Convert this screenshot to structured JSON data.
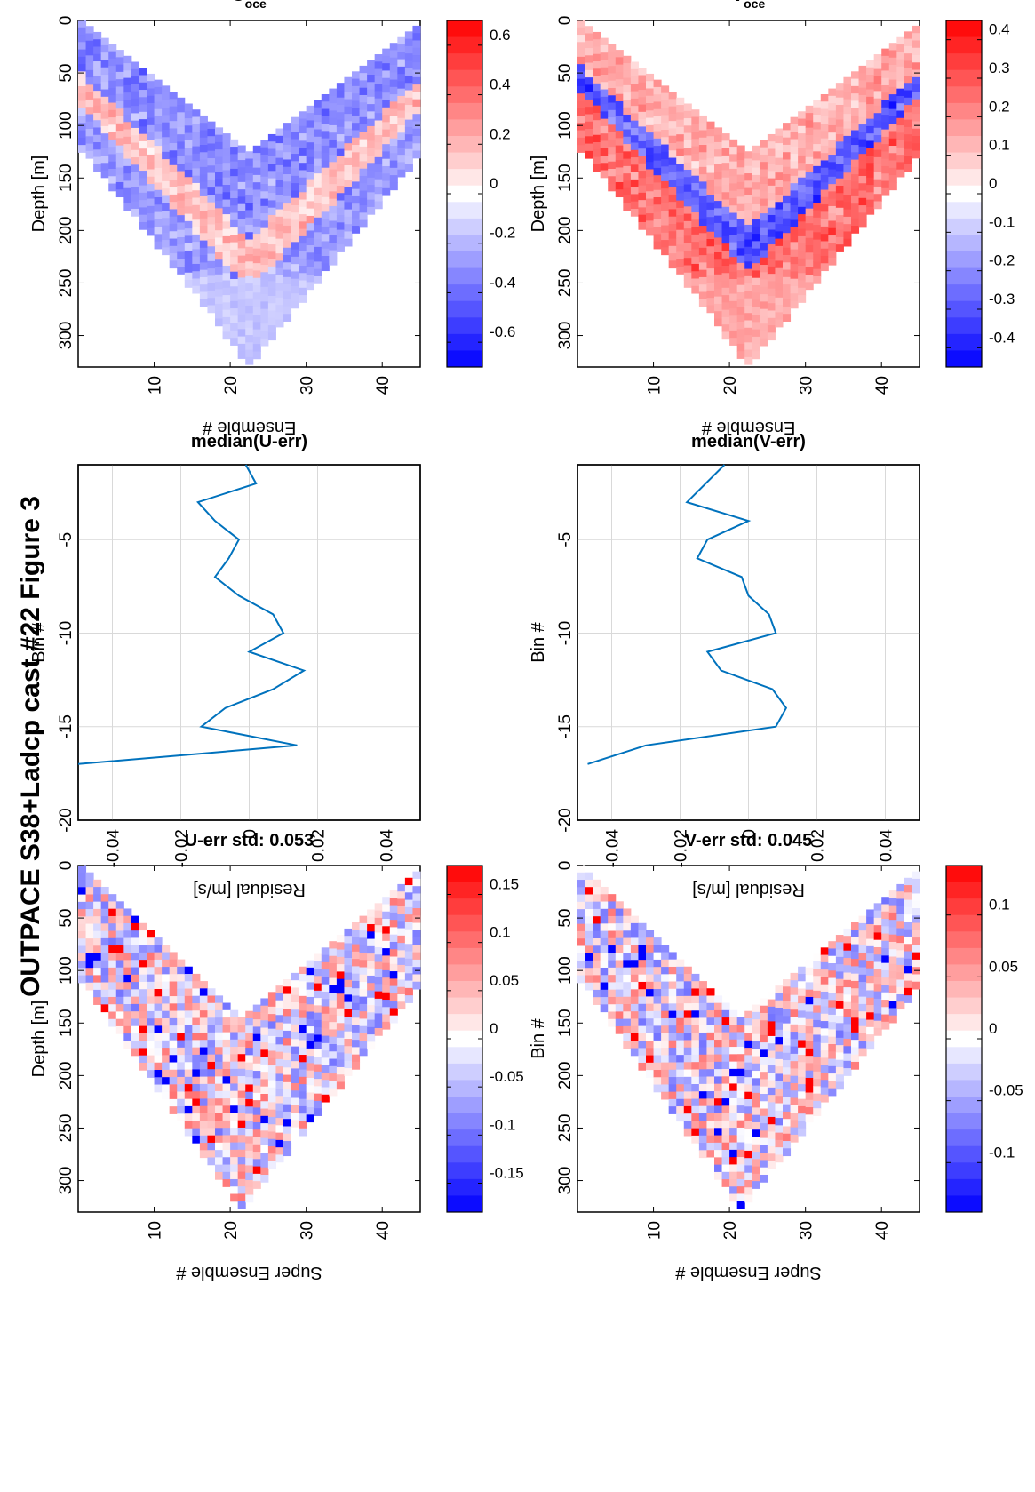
{
  "figure": {
    "title": "OUTPACE S38+Ladcp cast #22  Figure 3",
    "colors": {
      "accent_red": "#ff0000",
      "accent_blue": "#0000ff",
      "line": "#0072bd",
      "grid": "#d9d9d9"
    }
  },
  "chart_data": [
    {
      "id": "u_err",
      "type": "heatmap",
      "title": "U-err std: 0.053",
      "xlabel": "Super Ensemble #",
      "ylabel": "Depth [m]",
      "xlim": [
        0,
        45
      ],
      "ylim": [
        0,
        330
      ],
      "xticks": [
        "10",
        "20",
        "30",
        "40"
      ],
      "yticks": [
        "0",
        "50",
        "100",
        "150",
        "200",
        "250",
        "300"
      ],
      "colorbar": {
        "range": [
          -0.18,
          0.18
        ],
        "ticks": [
          "0.15",
          "0.1",
          "0.05",
          "0",
          "-0.05",
          "-0.1",
          "-0.15"
        ]
      },
      "v_shape": {
        "top_left_depth": 0,
        "apex_x": 21,
        "apex_depth": 325,
        "left_band_width": 180,
        "right_band_width": 180
      }
    },
    {
      "id": "median_u",
      "type": "line",
      "title": "median(U-err)",
      "xlabel": "Residual [m/s]",
      "ylabel": "Bin #",
      "xlim": [
        -0.05,
        0.05
      ],
      "ylim": [
        -20,
        -1
      ],
      "xticks": [
        "-0.04",
        "-0.02",
        "0",
        "0.02",
        "0.04"
      ],
      "yticks": [
        "-5",
        "-10",
        "-15",
        "-20"
      ],
      "x": [
        -0.001,
        0.002,
        -0.015,
        -0.01,
        -0.003,
        -0.006,
        -0.01,
        -0.003,
        0.007,
        0.01,
        0.0,
        0.016,
        0.007,
        -0.007,
        -0.014,
        0.014,
        -0.05
      ],
      "y": [
        -1,
        -2,
        -3,
        -4,
        -5,
        -6,
        -7,
        -8,
        -9,
        -10,
        -11,
        -12,
        -13,
        -14,
        -15,
        -16,
        -17
      ]
    },
    {
      "id": "u_oce",
      "type": "heatmap",
      "title": "U",
      "title_sub": "oce",
      "xlabel": "Ensemble #",
      "ylabel": "Depth [m]",
      "xlim": [
        0,
        45
      ],
      "ylim": [
        0,
        330
      ],
      "xticks": [
        "10",
        "20",
        "30",
        "40"
      ],
      "yticks": [
        "0",
        "50",
        "100",
        "150",
        "200",
        "250",
        "300"
      ],
      "colorbar": {
        "range": [
          -0.7,
          0.7
        ],
        "ticks": [
          "0.6",
          "0.4",
          "0.2",
          "0",
          "-0.2",
          "-0.4",
          "-0.6"
        ]
      },
      "v_shape": {
        "top_left_depth": 0,
        "apex_x": 22,
        "apex_depth": 325,
        "left_band_width": 200,
        "right_band_width": 200
      }
    },
    {
      "id": "v_err",
      "type": "heatmap",
      "title": "V-err std: 0.045",
      "xlabel": "Super Ensemble #",
      "ylabel": "Bin #",
      "xlim": [
        0,
        45
      ],
      "ylim": [
        0,
        330
      ],
      "xticks": [
        "10",
        "20",
        "30",
        "40"
      ],
      "yticks": [
        "0",
        "50",
        "100",
        "150",
        "200",
        "250",
        "300"
      ],
      "colorbar": {
        "range": [
          -0.14,
          0.14
        ],
        "ticks": [
          "0.1",
          "0.05",
          "0",
          "-0.05",
          "-0.1"
        ]
      },
      "v_shape": {
        "top_left_depth": 0,
        "apex_x": 21,
        "apex_depth": 325,
        "left_band_width": 180,
        "right_band_width": 180
      }
    },
    {
      "id": "median_v",
      "type": "line",
      "title": "median(V-err)",
      "xlabel": "Residual [m/s]",
      "ylabel": "Bin #",
      "xlim": [
        -0.05,
        0.05
      ],
      "ylim": [
        -20,
        -1
      ],
      "xticks": [
        "-0.04",
        "-0.02",
        "0",
        "0.02",
        "0.04"
      ],
      "yticks": [
        "-5",
        "-10",
        "-15",
        "-20"
      ],
      "x": [
        -0.007,
        -0.018,
        0.0,
        -0.012,
        -0.015,
        -0.002,
        0.0,
        0.006,
        0.008,
        -0.012,
        -0.008,
        0.007,
        0.011,
        0.008,
        -0.03,
        -0.047
      ],
      "y": [
        -1,
        -3,
        -4,
        -5,
        -6,
        -7,
        -8,
        -9,
        -10,
        -11,
        -12,
        -13,
        -14,
        -15,
        -16,
        -17
      ]
    },
    {
      "id": "v_oce",
      "type": "heatmap",
      "title": "V",
      "title_sub": "oce",
      "xlabel": "Ensemble #",
      "ylabel": "Depth [m]",
      "xlim": [
        0,
        45
      ],
      "ylim": [
        0,
        330
      ],
      "xticks": [
        "10",
        "20",
        "30",
        "40"
      ],
      "yticks": [
        "0",
        "50",
        "100",
        "150",
        "200",
        "250",
        "300"
      ],
      "colorbar": {
        "range": [
          -0.45,
          0.45
        ],
        "ticks": [
          "0.4",
          "0.3",
          "0.2",
          "0.1",
          "0",
          "-0.1",
          "-0.2",
          "-0.3",
          "-0.4"
        ]
      },
      "v_shape": {
        "top_left_depth": 0,
        "apex_x": 22,
        "apex_depth": 325,
        "left_band_width": 200,
        "right_band_width": 200
      }
    }
  ]
}
